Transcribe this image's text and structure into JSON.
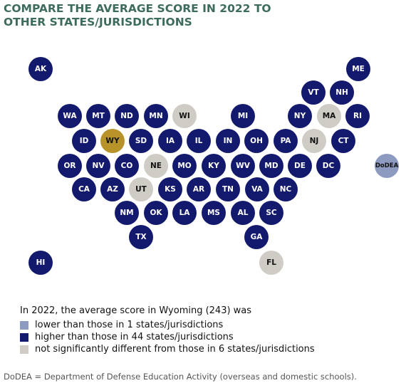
{
  "title": "COMPARE THE AVERAGE SCORE IN 2022 TO OTHER STATES/JURISDICTIONS",
  "colors": {
    "higher": "#131a6e",
    "lower": "#8e9bc0",
    "not_significant": "#cfccc5",
    "focal": "#b8932a"
  },
  "states": [
    {
      "abbr": "AK",
      "status": "higher"
    },
    {
      "abbr": "ME",
      "status": "higher"
    },
    {
      "abbr": "VT",
      "status": "higher"
    },
    {
      "abbr": "NH",
      "status": "higher"
    },
    {
      "abbr": "WA",
      "status": "higher"
    },
    {
      "abbr": "MT",
      "status": "higher"
    },
    {
      "abbr": "ND",
      "status": "higher"
    },
    {
      "abbr": "MN",
      "status": "higher"
    },
    {
      "abbr": "WI",
      "status": "not_significant"
    },
    {
      "abbr": "MI",
      "status": "higher"
    },
    {
      "abbr": "NY",
      "status": "higher"
    },
    {
      "abbr": "MA",
      "status": "not_significant"
    },
    {
      "abbr": "RI",
      "status": "higher"
    },
    {
      "abbr": "ID",
      "status": "higher"
    },
    {
      "abbr": "WY",
      "status": "focal"
    },
    {
      "abbr": "SD",
      "status": "higher"
    },
    {
      "abbr": "IA",
      "status": "higher"
    },
    {
      "abbr": "IL",
      "status": "higher"
    },
    {
      "abbr": "IN",
      "status": "higher"
    },
    {
      "abbr": "OH",
      "status": "higher"
    },
    {
      "abbr": "PA",
      "status": "higher"
    },
    {
      "abbr": "NJ",
      "status": "not_significant"
    },
    {
      "abbr": "CT",
      "status": "higher"
    },
    {
      "abbr": "OR",
      "status": "higher"
    },
    {
      "abbr": "NV",
      "status": "higher"
    },
    {
      "abbr": "CO",
      "status": "higher"
    },
    {
      "abbr": "NE",
      "status": "not_significant"
    },
    {
      "abbr": "MO",
      "status": "higher"
    },
    {
      "abbr": "KY",
      "status": "higher"
    },
    {
      "abbr": "WV",
      "status": "higher"
    },
    {
      "abbr": "MD",
      "status": "higher"
    },
    {
      "abbr": "DE",
      "status": "higher"
    },
    {
      "abbr": "DC",
      "status": "higher"
    },
    {
      "abbr": "DoDEA",
      "status": "lower"
    },
    {
      "abbr": "CA",
      "status": "higher"
    },
    {
      "abbr": "AZ",
      "status": "higher"
    },
    {
      "abbr": "UT",
      "status": "not_significant"
    },
    {
      "abbr": "KS",
      "status": "higher"
    },
    {
      "abbr": "AR",
      "status": "higher"
    },
    {
      "abbr": "TN",
      "status": "higher"
    },
    {
      "abbr": "VA",
      "status": "higher"
    },
    {
      "abbr": "NC",
      "status": "higher"
    },
    {
      "abbr": "NM",
      "status": "higher"
    },
    {
      "abbr": "OK",
      "status": "higher"
    },
    {
      "abbr": "LA",
      "status": "higher"
    },
    {
      "abbr": "MS",
      "status": "higher"
    },
    {
      "abbr": "AL",
      "status": "higher"
    },
    {
      "abbr": "SC",
      "status": "higher"
    },
    {
      "abbr": "TX",
      "status": "higher"
    },
    {
      "abbr": "GA",
      "status": "higher"
    },
    {
      "abbr": "HI",
      "status": "higher"
    },
    {
      "abbr": "FL",
      "status": "not_significant"
    }
  ],
  "legend": {
    "intro": "In 2022, the average score in Wyoming (243) was",
    "items": [
      {
        "key": "lower",
        "label": "lower than those in 1 states/jurisdictions"
      },
      {
        "key": "higher",
        "label": "higher than those in 44 states/jurisdictions"
      },
      {
        "key": "not_significant",
        "label": "not significantly different from those in 6 states/jurisdictions"
      }
    ]
  },
  "footnote": "DoDEA = Department of Defense Education Activity (overseas and domestic schools)."
}
